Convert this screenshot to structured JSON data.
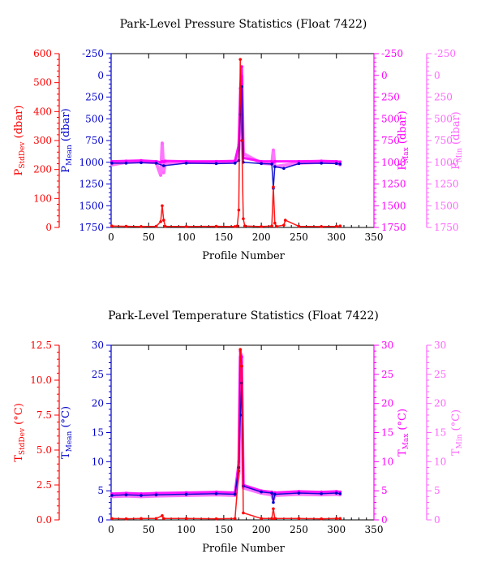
{
  "chart_data": [
    {
      "type": "line",
      "title": "Park-Level Pressure Statistics (Float 7422)",
      "xlabel": "Profile Number",
      "xlim": [
        0,
        350
      ],
      "xticks": [
        "0",
        "50",
        "100",
        "150",
        "200",
        "250",
        "300",
        "350"
      ],
      "axes": [
        {
          "key": "sd",
          "label_main": "P",
          "label_sub": "StdDev",
          "label_unit": " (dbar)",
          "color": "#ff0000",
          "side": "left-outer",
          "ylim": [
            0,
            600
          ],
          "reversed": false,
          "ticks": [
            "0",
            "100",
            "200",
            "300",
            "400",
            "500",
            "600"
          ]
        },
        {
          "key": "mean",
          "label_main": "P",
          "label_sub": "Mean",
          "label_unit": " (dbar)",
          "color": "#0000cc",
          "side": "left-inner",
          "ylim": [
            -250,
            1750
          ],
          "reversed": true,
          "ticks": [
            "-250",
            "0",
            "250",
            "500",
            "750",
            "1000",
            "1250",
            "1500",
            "1750"
          ]
        },
        {
          "key": "max",
          "label_main": "P",
          "label_sub": "Max",
          "label_unit": " (dbar)",
          "color": "#ff00ff",
          "side": "right-inner",
          "ylim": [
            -250,
            1750
          ],
          "reversed": true,
          "ticks": [
            "-250",
            "0",
            "250",
            "500",
            "750",
            "1000",
            "1250",
            "1500",
            "1750"
          ]
        },
        {
          "key": "min",
          "label_main": "P",
          "label_sub": "Min",
          "label_unit": " (dbar)",
          "color": "#ff66ff",
          "side": "right-outer",
          "ylim": [
            -250,
            1750
          ],
          "reversed": true,
          "ticks": [
            "-250",
            "0",
            "250",
            "500",
            "750",
            "1000",
            "1250",
            "1500",
            "1750"
          ]
        }
      ],
      "series": [
        {
          "axis": "min",
          "color": "#ff66ff",
          "x": [
            1,
            20,
            40,
            60,
            66,
            68,
            70,
            72,
            100,
            140,
            165,
            170,
            172,
            174,
            176,
            200,
            214,
            216,
            218,
            250,
            280,
            300,
            305
          ],
          "y": [
            1030,
            1000,
            995,
            1005,
            1150,
            780,
            1120,
            1010,
            1000,
            1005,
            1000,
            850,
            400,
            10,
            900,
            1010,
            1020,
            860,
            1050,
            1010,
            1000,
            1005,
            1030
          ]
        },
        {
          "axis": "max",
          "color": "#ff00ff",
          "x": [
            1,
            20,
            40,
            60,
            66,
            68,
            70,
            72,
            100,
            140,
            165,
            170,
            172,
            174,
            176,
            200,
            214,
            216,
            218,
            250,
            280,
            300,
            305
          ],
          "y": [
            990,
            985,
            980,
            990,
            1000,
            990,
            995,
            985,
            990,
            990,
            985,
            800,
            150,
            -100,
            950,
            990,
            990,
            1000,
            990,
            990,
            985,
            990,
            995
          ]
        },
        {
          "axis": "mean",
          "color": "#0000cc",
          "x": [
            1,
            20,
            40,
            60,
            70,
            100,
            140,
            165,
            170,
            172,
            174,
            176,
            200,
            214,
            216,
            218,
            230,
            250,
            280,
            300,
            305
          ],
          "y": [
            1010,
            1010,
            1005,
            1010,
            1040,
            1010,
            1015,
            1010,
            980,
            450,
            130,
            1000,
            1015,
            1020,
            1300,
            1050,
            1070,
            1015,
            1010,
            1015,
            1020
          ]
        },
        {
          "axis": "sd",
          "color": "#ff0000",
          "x": [
            1,
            20,
            40,
            60,
            66,
            68,
            70,
            72,
            100,
            140,
            165,
            168,
            170,
            172,
            174,
            176,
            178,
            200,
            214,
            216,
            218,
            220,
            230,
            232,
            250,
            280,
            300,
            305
          ],
          "y": [
            5,
            4,
            3,
            4,
            20,
            75,
            25,
            4,
            3,
            4,
            3,
            5,
            60,
            580,
            300,
            30,
            5,
            3,
            5,
            140,
            15,
            4,
            8,
            25,
            4,
            3,
            4,
            5
          ]
        }
      ]
    },
    {
      "type": "line",
      "title": "Park-Level Temperature Statistics (Float 7422)",
      "xlabel": "Profile Number",
      "xlim": [
        0,
        350
      ],
      "xticks": [
        "0",
        "50",
        "100",
        "150",
        "200",
        "250",
        "300",
        "350"
      ],
      "axes": [
        {
          "key": "sd",
          "label_main": "T",
          "label_sub": "StdDev",
          "label_unit": " (°C)",
          "color": "#ff0000",
          "side": "left-outer",
          "ylim": [
            0,
            12.5
          ],
          "reversed": false,
          "ticks": [
            "0.0",
            "2.5",
            "5.0",
            "7.5",
            "10.0",
            "12.5"
          ]
        },
        {
          "key": "mean",
          "label_main": "T",
          "label_sub": "Mean",
          "label_unit": " (°C)",
          "color": "#0000cc",
          "side": "left-inner",
          "ylim": [
            0,
            30
          ],
          "reversed": false,
          "ticks": [
            "0",
            "5",
            "10",
            "15",
            "20",
            "25",
            "30"
          ]
        },
        {
          "key": "max",
          "label_main": "T",
          "label_sub": "Max",
          "label_unit": " (°C)",
          "color": "#ff00ff",
          "side": "right-inner",
          "ylim": [
            0,
            30
          ],
          "reversed": false,
          "ticks": [
            "0",
            "5",
            "10",
            "15",
            "20",
            "25",
            "30"
          ]
        },
        {
          "key": "min",
          "label_main": "T",
          "label_sub": "Min",
          "label_unit": " (°C)",
          "color": "#ff66ff",
          "side": "right-outer",
          "ylim": [
            0,
            30
          ],
          "reversed": false,
          "ticks": [
            "0",
            "5",
            "10",
            "15",
            "20",
            "25",
            "30"
          ]
        }
      ],
      "series": [
        {
          "axis": "min",
          "color": "#ff66ff",
          "x": [
            1,
            20,
            40,
            60,
            100,
            140,
            165,
            170,
            172,
            174,
            176,
            200,
            214,
            216,
            218,
            250,
            280,
            300,
            305
          ],
          "y": [
            4.0,
            4.1,
            4.0,
            4.1,
            4.2,
            4.3,
            4.2,
            8.0,
            28.0,
            22.0,
            5.5,
            4.6,
            4.3,
            3.5,
            4.2,
            4.4,
            4.3,
            4.4,
            4.3
          ]
        },
        {
          "axis": "max",
          "color": "#ff00ff",
          "x": [
            1,
            20,
            40,
            60,
            100,
            140,
            165,
            170,
            172,
            174,
            176,
            200,
            214,
            216,
            218,
            250,
            280,
            300,
            305
          ],
          "y": [
            4.5,
            4.6,
            4.5,
            4.6,
            4.7,
            4.8,
            4.7,
            10.0,
            29.0,
            28.0,
            6.0,
            5.0,
            4.8,
            4.5,
            4.7,
            4.9,
            4.8,
            4.9,
            4.8
          ]
        },
        {
          "axis": "mean",
          "color": "#0000cc",
          "x": [
            1,
            20,
            40,
            60,
            100,
            140,
            165,
            170,
            172,
            174,
            176,
            200,
            214,
            216,
            218,
            250,
            280,
            300,
            305
          ],
          "y": [
            4.2,
            4.3,
            4.2,
            4.3,
            4.4,
            4.5,
            4.4,
            9.0,
            18.0,
            23.5,
            5.8,
            4.8,
            4.6,
            3.0,
            4.4,
            4.6,
            4.5,
            4.6,
            4.5
          ]
        },
        {
          "axis": "sd",
          "color": "#ff0000",
          "x": [
            1,
            20,
            40,
            60,
            68,
            70,
            100,
            140,
            165,
            170,
            172,
            174,
            176,
            200,
            214,
            216,
            218,
            250,
            280,
            300,
            305
          ],
          "y": [
            0.1,
            0.08,
            0.1,
            0.1,
            0.3,
            0.1,
            0.1,
            0.08,
            0.1,
            3.5,
            12.2,
            11.0,
            0.5,
            0.1,
            0.1,
            0.8,
            0.1,
            0.1,
            0.08,
            0.1,
            0.1
          ]
        }
      ]
    }
  ]
}
